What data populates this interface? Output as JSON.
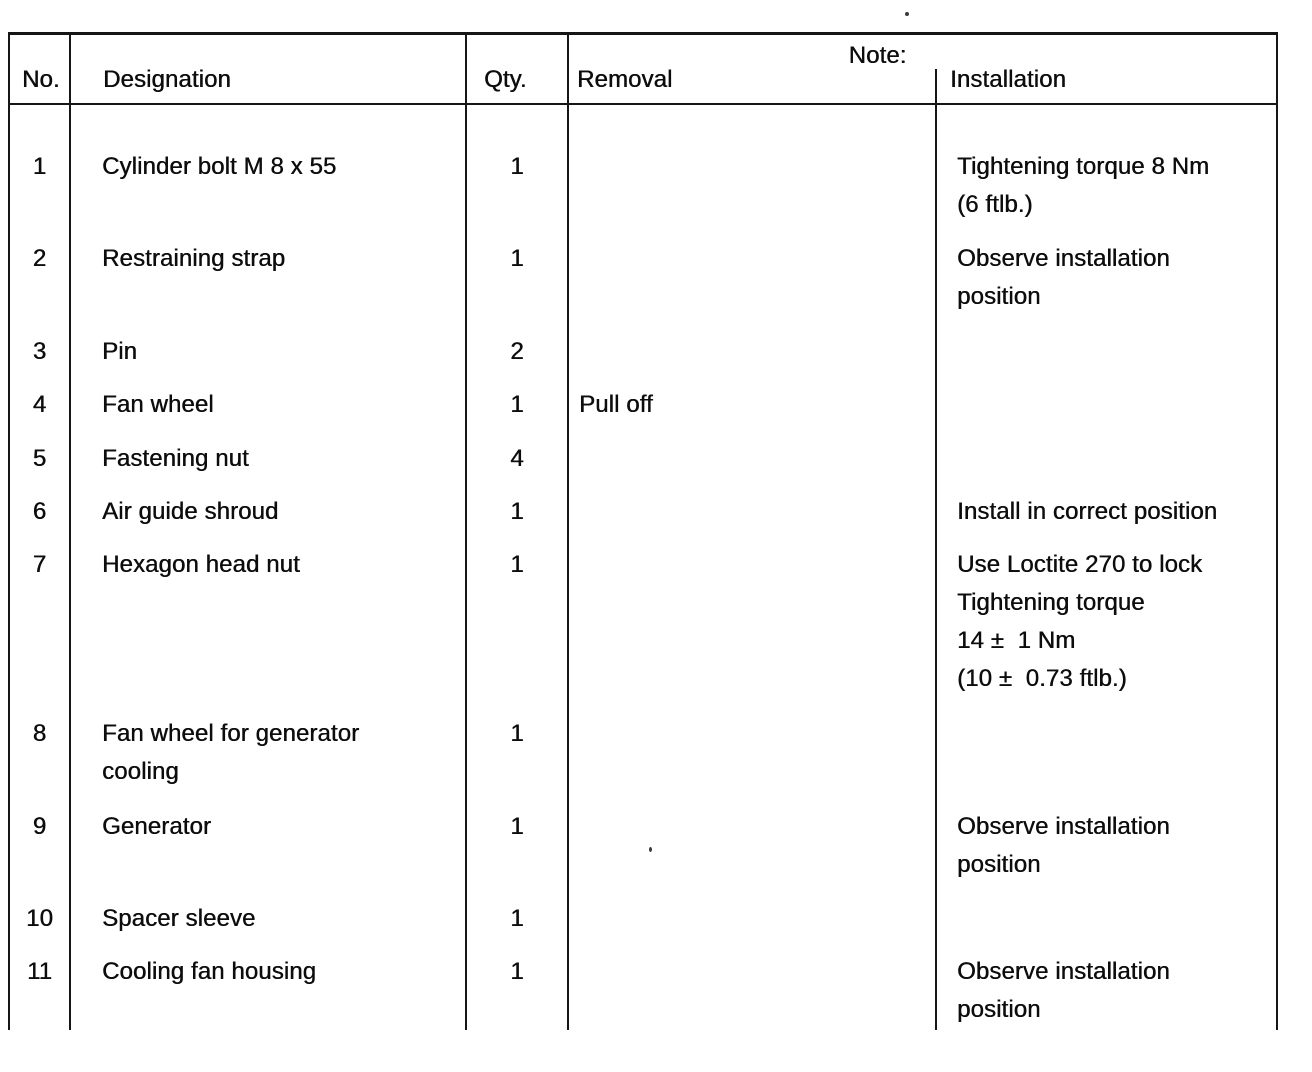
{
  "table": {
    "header": {
      "no": "No.",
      "designation": "Designation",
      "qty": "Qty.",
      "note": "Note:",
      "removal": "Removal",
      "installation": "Installation"
    },
    "rows": [
      {
        "no": "1",
        "designation": "Cylinder bolt M 8 x 55",
        "qty": "1",
        "removal": "",
        "installation": "Tightening torque 8 Nm\n(6 ftlb.)"
      },
      {
        "no": "2",
        "designation": "Restraining strap",
        "qty": "1",
        "removal": "",
        "installation": "Observe installation\nposition"
      },
      {
        "no": "3",
        "designation": "Pin",
        "qty": "2",
        "removal": "",
        "installation": ""
      },
      {
        "no": "4",
        "designation": "Fan wheel",
        "qty": "1",
        "removal": "Pull off",
        "installation": ""
      },
      {
        "no": "5",
        "designation": "Fastening nut",
        "qty": "4",
        "removal": "",
        "installation": ""
      },
      {
        "no": "6",
        "designation": "Air guide shroud",
        "qty": "1",
        "removal": "",
        "installation": "Install in correct position"
      },
      {
        "no": "7",
        "designation": "Hexagon head nut",
        "qty": "1",
        "removal": "",
        "installation": "Use Loctite 270 to lock\nTightening torque\n14 ±  1 Nm\n(10 ±  0.73 ftlb.)"
      },
      {
        "no": "8",
        "designation": "Fan wheel for generator\ncooling",
        "qty": "1",
        "removal": "",
        "installation": ""
      },
      {
        "no": "9",
        "designation": "Generator",
        "qty": "1",
        "removal": "",
        "installation": "Observe installation\nposition"
      },
      {
        "no": "10",
        "designation": "Spacer sleeve",
        "qty": "1",
        "removal": "",
        "installation": ""
      },
      {
        "no": "11",
        "designation": "Cooling fan housing",
        "qty": "1",
        "removal": "",
        "installation": "Observe installation\nposition"
      }
    ]
  }
}
